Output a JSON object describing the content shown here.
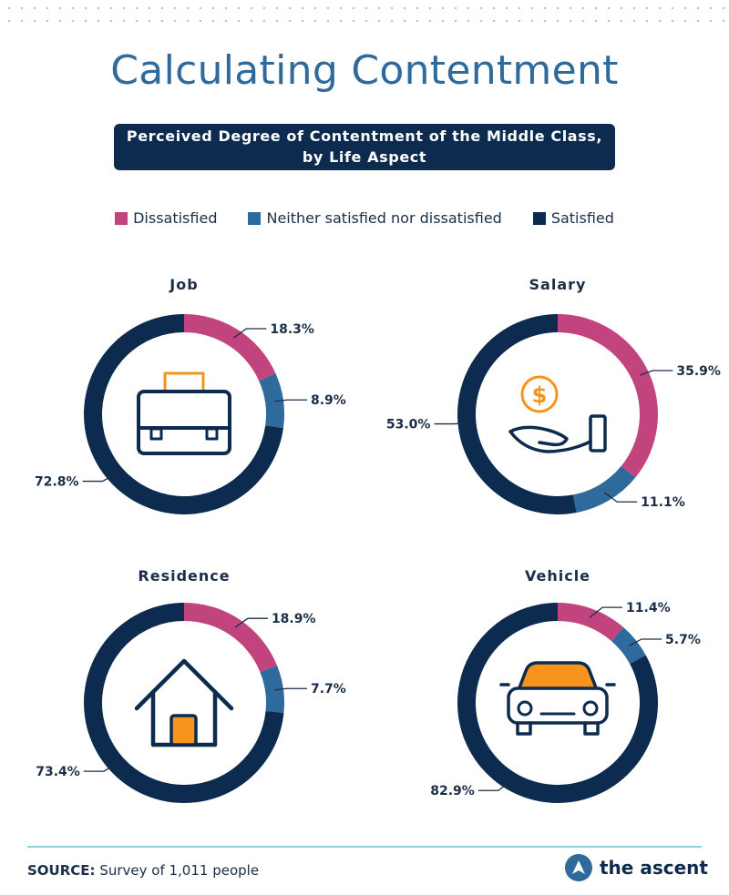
{
  "title": "Calculating Contentment",
  "subtitle": {
    "line1": "Perceived Degree of Contentment of the Middle Class,",
    "line2": "by Life Aspect"
  },
  "colors": {
    "dissatisfied": "#c2447f",
    "neither": "#2e6a9b",
    "satisfied": "#0c2b4e",
    "accent_orange": "#f7941d"
  },
  "legend": [
    "Dissatisfied",
    "Neither satisfied nor dissatisfied",
    "Satisfied"
  ],
  "chart_data": [
    {
      "type": "pie",
      "title": "Job",
      "icon": "briefcase-icon",
      "categories": [
        "Dissatisfied",
        "Neither satisfied nor dissatisfied",
        "Satisfied"
      ],
      "values": [
        18.3,
        8.9,
        72.8
      ],
      "labels": [
        "18.3%",
        "8.9%",
        "72.8%"
      ]
    },
    {
      "type": "pie",
      "title": "Salary",
      "icon": "dollar-hand-icon",
      "categories": [
        "Dissatisfied",
        "Neither satisfied nor dissatisfied",
        "Satisfied"
      ],
      "values": [
        35.9,
        11.1,
        53.0
      ],
      "labels": [
        "35.9%",
        "11.1%",
        "53.0%"
      ]
    },
    {
      "type": "pie",
      "title": "Residence",
      "icon": "house-icon",
      "categories": [
        "Dissatisfied",
        "Neither satisfied nor dissatisfied",
        "Satisfied"
      ],
      "values": [
        18.9,
        7.7,
        73.4
      ],
      "labels": [
        "18.9%",
        "7.7%",
        "73.4%"
      ]
    },
    {
      "type": "pie",
      "title": "Vehicle",
      "icon": "car-icon",
      "categories": [
        "Dissatisfied",
        "Neither satisfied nor dissatisfied",
        "Satisfied"
      ],
      "values": [
        11.4,
        5.7,
        82.9
      ],
      "labels": [
        "11.4%",
        "5.7%",
        "82.9%"
      ]
    }
  ],
  "source": {
    "label": "SOURCE:",
    "text": "Survey of 1,011 people"
  },
  "brand": {
    "name": "the ascent",
    "icon": "ascent-logo-icon"
  }
}
